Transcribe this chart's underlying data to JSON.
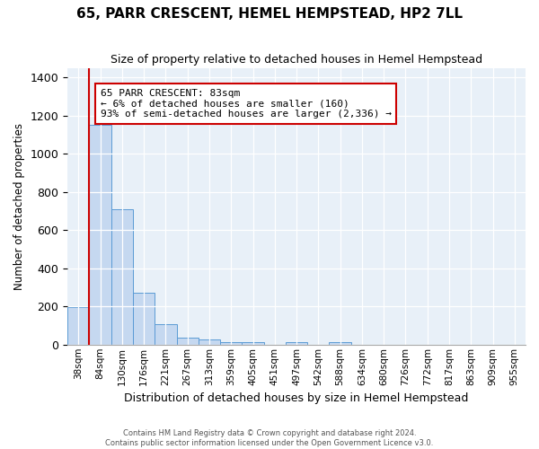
{
  "title": "65, PARR CRESCENT, HEMEL HEMPSTEAD, HP2 7LL",
  "subtitle": "Size of property relative to detached houses in Hemel Hempstead",
  "xlabel": "Distribution of detached houses by size in Hemel Hempstead",
  "ylabel": "Number of detached properties",
  "categories": [
    "38sqm",
    "84sqm",
    "130sqm",
    "176sqm",
    "221sqm",
    "267sqm",
    "313sqm",
    "359sqm",
    "405sqm",
    "451sqm",
    "497sqm",
    "542sqm",
    "588sqm",
    "634sqm",
    "680sqm",
    "726sqm",
    "772sqm",
    "817sqm",
    "863sqm",
    "909sqm",
    "955sqm"
  ],
  "bar_heights": [
    195,
    1150,
    710,
    270,
    108,
    35,
    28,
    14,
    12,
    0,
    15,
    0,
    15,
    0,
    0,
    0,
    0,
    0,
    0,
    0,
    0
  ],
  "bar_color": "#c5d8f0",
  "bar_edge_color": "#5b9bd5",
  "vline_color": "#cc0000",
  "annotation_box_text": "65 PARR CRESCENT: 83sqm\n← 6% of detached houses are smaller (160)\n93% of semi-detached houses are larger (2,336) →",
  "annotation_box_color": "#cc0000",
  "ylim": [
    0,
    1450
  ],
  "background_color": "#e8f0f8",
  "footer_line1": "Contains HM Land Registry data © Crown copyright and database right 2024.",
  "footer_line2": "Contains public sector information licensed under the Open Government Licence v3.0."
}
